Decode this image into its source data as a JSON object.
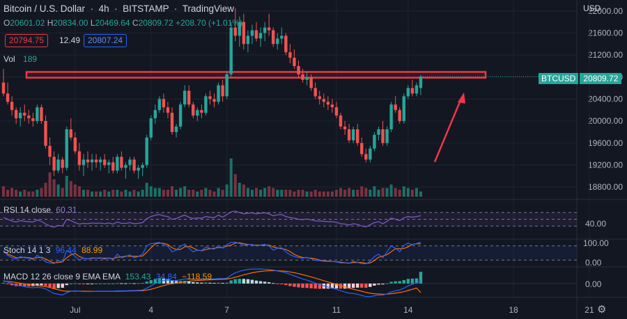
{
  "header": {
    "title": "Bitcoin / U.S. Dollar",
    "interval": "4h",
    "exchange": "BITSTAMP",
    "provider": "TradingView",
    "currency": "USD"
  },
  "ohlc": {
    "o_label": "O",
    "o": "20601.02",
    "h_label": "H",
    "h": "20834.00",
    "l_label": "L",
    "l": "20469.64",
    "c_label": "C",
    "c": "20809.72",
    "change": "+208.70 (+1.01%)"
  },
  "price_boxes": {
    "bid": "20794.75",
    "spread": "12.49",
    "ask": "20807.24"
  },
  "volume": {
    "label": "Vol",
    "value": "189"
  },
  "rsi": {
    "label": "RSI 14 close",
    "value": "60.31",
    "ticks": [
      "40.00"
    ]
  },
  "stoch": {
    "label": "Stoch 14 1 3",
    "k": "96.44",
    "d": "88.99",
    "ticks": [
      "100.00",
      "0.00"
    ]
  },
  "macd": {
    "label": "MACD 12 26 close 9 EMA EMA",
    "hist": "153.43",
    "macd": "34.84",
    "signal": "−118.59",
    "ticks": [
      "0.00"
    ]
  },
  "symbol_tag": {
    "name": "BTCUSD",
    "price": "20809.72"
  },
  "colors": {
    "up": "#26a69a",
    "down": "#ef5350",
    "bg": "#131722",
    "rsi": "#7e57c2",
    "stoch_k": "#2962ff",
    "stoch_d": "#ff6d00",
    "annotation": "#f23645"
  },
  "chart_data": {
    "type": "candlestick",
    "title": "Bitcoin / U.S. Dollar",
    "ylabel": "USD",
    "ylim": [
      18600,
      22200
    ],
    "y_ticks": [
      18800,
      19200,
      19600,
      20000,
      20400,
      20800,
      21200,
      21600,
      22000
    ],
    "y_tick_labels": [
      "18800.00",
      "19200.00",
      "19600.00",
      "20000.00",
      "20400.00",
      "20800.00",
      "21200.00",
      "21600.00",
      "22000.00"
    ],
    "x_tick_labels": [
      "Jul",
      "4",
      "7",
      "11",
      "14",
      "18",
      "21"
    ],
    "x_tick_bar_index": [
      17,
      35,
      53,
      79,
      96,
      121,
      139
    ],
    "grid": true,
    "last_price": 20809.72,
    "resistance_zone": [
      20800,
      20880
    ],
    "candles": [
      [
        20700,
        20950,
        20450,
        20500
      ],
      [
        20500,
        20700,
        20300,
        20350
      ],
      [
        20350,
        20450,
        20100,
        20200
      ],
      [
        20200,
        20250,
        19950,
        20050
      ],
      [
        20050,
        20250,
        19900,
        20150
      ],
      [
        20150,
        20300,
        20000,
        20100
      ],
      [
        20100,
        20200,
        19950,
        20050
      ],
      [
        20050,
        20150,
        19900,
        20000
      ],
      [
        20000,
        20300,
        19950,
        20250
      ],
      [
        20250,
        20300,
        19950,
        20000
      ],
      [
        20000,
        20100,
        19500,
        19550
      ],
      [
        19550,
        19700,
        19200,
        19350
      ],
      [
        19350,
        19450,
        19000,
        19100
      ],
      [
        19100,
        19400,
        19050,
        19300
      ],
      [
        19300,
        19350,
        19050,
        19150
      ],
      [
        19150,
        19900,
        19100,
        19850
      ],
      [
        19850,
        20050,
        19650,
        19700
      ],
      [
        19700,
        19800,
        19400,
        19450
      ],
      [
        19450,
        19600,
        19100,
        19200
      ],
      [
        19200,
        19400,
        19000,
        19300
      ],
      [
        19300,
        19450,
        19150,
        19250
      ],
      [
        19250,
        19400,
        19100,
        19300
      ],
      [
        19300,
        19400,
        19150,
        19250
      ],
      [
        19250,
        19350,
        19100,
        19300
      ],
      [
        19300,
        19400,
        19150,
        19200
      ],
      [
        19200,
        19300,
        19050,
        19250
      ],
      [
        19250,
        19350,
        19050,
        19100
      ],
      [
        19100,
        19400,
        19050,
        19350
      ],
      [
        19350,
        19450,
        19100,
        19150
      ],
      [
        19150,
        19250,
        18950,
        19200
      ],
      [
        19200,
        19350,
        19100,
        19300
      ],
      [
        19300,
        19350,
        19050,
        19100
      ],
      [
        19100,
        19200,
        18950,
        19150
      ],
      [
        19150,
        19250,
        19000,
        19200
      ],
      [
        19200,
        19750,
        19150,
        19700
      ],
      [
        19700,
        20100,
        19650,
        20050
      ],
      [
        20050,
        20300,
        19950,
        20200
      ],
      [
        20200,
        20450,
        20150,
        20400
      ],
      [
        20400,
        20500,
        20150,
        20250
      ],
      [
        20250,
        20350,
        20050,
        20150
      ],
      [
        20150,
        20250,
        19750,
        19800
      ],
      [
        19800,
        19950,
        19700,
        19900
      ],
      [
        19900,
        20350,
        19850,
        20300
      ],
      [
        20300,
        20650,
        20250,
        20550
      ],
      [
        20550,
        20650,
        20250,
        20300
      ],
      [
        20300,
        20350,
        20050,
        20100
      ],
      [
        20100,
        20250,
        20000,
        20200
      ],
      [
        20200,
        20300,
        20050,
        20150
      ],
      [
        20150,
        20500,
        20100,
        20450
      ],
      [
        20450,
        20550,
        20300,
        20400
      ],
      [
        20400,
        20500,
        20250,
        20350
      ],
      [
        20350,
        20700,
        20300,
        20650
      ],
      [
        20650,
        20750,
        20350,
        20450
      ],
      [
        20450,
        20900,
        20400,
        20850
      ],
      [
        20850,
        21800,
        20800,
        21700
      ],
      [
        21700,
        22050,
        21450,
        21550
      ],
      [
        21550,
        21900,
        21350,
        21800
      ],
      [
        21800,
        21950,
        21300,
        21400
      ],
      [
        21400,
        21650,
        21250,
        21550
      ],
      [
        21550,
        21750,
        21400,
        21650
      ],
      [
        21650,
        21800,
        21450,
        21500
      ],
      [
        21500,
        21700,
        21350,
        21600
      ],
      [
        21600,
        21800,
        21450,
        21700
      ],
      [
        21700,
        21950,
        21550,
        21650
      ],
      [
        21650,
        21700,
        21350,
        21400
      ],
      [
        21400,
        21600,
        21300,
        21500
      ],
      [
        21500,
        21700,
        21400,
        21550
      ],
      [
        21550,
        21600,
        21200,
        21250
      ],
      [
        21250,
        21400,
        21050,
        21150
      ],
      [
        21150,
        21300,
        20950,
        21000
      ],
      [
        21000,
        21100,
        20800,
        20850
      ],
      [
        20850,
        20950,
        20700,
        20750
      ],
      [
        20750,
        20900,
        20650,
        20800
      ],
      [
        20800,
        20850,
        20550,
        20600
      ],
      [
        20600,
        20700,
        20400,
        20450
      ],
      [
        20450,
        20550,
        20300,
        20400
      ],
      [
        20400,
        20500,
        20250,
        20350
      ],
      [
        20350,
        20450,
        20200,
        20300
      ],
      [
        20300,
        20400,
        20150,
        20250
      ],
      [
        20250,
        20350,
        20050,
        20100
      ],
      [
        20100,
        20150,
        19850,
        19900
      ],
      [
        19900,
        20000,
        19750,
        19850
      ],
      [
        19850,
        19950,
        19600,
        19650
      ],
      [
        19650,
        19900,
        19600,
        19850
      ],
      [
        19850,
        19950,
        19550,
        19600
      ],
      [
        19600,
        19700,
        19350,
        19400
      ],
      [
        19400,
        19500,
        19250,
        19300
      ],
      [
        19300,
        19550,
        19250,
        19500
      ],
      [
        19500,
        19800,
        19450,
        19750
      ],
      [
        19750,
        19900,
        19650,
        19850
      ],
      [
        19850,
        20000,
        19550,
        19600
      ],
      [
        19600,
        19900,
        19550,
        19850
      ],
      [
        19850,
        20350,
        19800,
        20300
      ],
      [
        20300,
        20450,
        20150,
        20200
      ],
      [
        20200,
        20250,
        19950,
        20000
      ],
      [
        20000,
        20500,
        19950,
        20450
      ],
      [
        20450,
        20650,
        20400,
        20600
      ],
      [
        20600,
        20750,
        20450,
        20500
      ],
      [
        20500,
        20700,
        20450,
        20650
      ],
      [
        20601.02,
        20834,
        20469.64,
        20809.72
      ]
    ],
    "volume": [
      6,
      4,
      5,
      4,
      3,
      4,
      3,
      3,
      4,
      5,
      8,
      14,
      10,
      7,
      5,
      12,
      9,
      7,
      6,
      4,
      4,
      3,
      3,
      3,
      4,
      3,
      4,
      4,
      3,
      4,
      3,
      4,
      3,
      4,
      8,
      6,
      5,
      5,
      4,
      4,
      6,
      4,
      5,
      6,
      4,
      4,
      3,
      4,
      5,
      4,
      3,
      5,
      4,
      7,
      22,
      13,
      8,
      7,
      5,
      4,
      5,
      4,
      5,
      6,
      5,
      4,
      4,
      4,
      4,
      3,
      4,
      4,
      3,
      3,
      4,
      3,
      3,
      3,
      3,
      4,
      5,
      4,
      5,
      4,
      4,
      6,
      5,
      4,
      6,
      4,
      5,
      5,
      7,
      5,
      4,
      6,
      5,
      4,
      5,
      3
    ],
    "rsi": [
      55,
      50,
      45,
      42,
      46,
      44,
      43,
      42,
      48,
      44,
      36,
      30,
      27,
      32,
      30,
      50,
      46,
      40,
      36,
      38,
      37,
      39,
      38,
      39,
      37,
      39,
      36,
      42,
      38,
      38,
      40,
      37,
      38,
      40,
      52,
      58,
      62,
      64,
      60,
      58,
      50,
      52,
      58,
      62,
      56,
      52,
      54,
      53,
      58,
      56,
      55,
      62,
      56,
      64,
      72,
      74,
      70,
      66,
      68,
      69,
      66,
      68,
      69,
      66,
      60,
      63,
      64,
      58,
      55,
      53,
      50,
      49,
      51,
      48,
      45,
      45,
      44,
      43,
      43,
      41,
      37,
      36,
      33,
      37,
      35,
      30,
      28,
      34,
      40,
      43,
      37,
      44,
      54,
      50,
      46,
      54,
      58,
      56,
      58,
      60.31
    ],
    "stoch_k": [
      60,
      40,
      30,
      25,
      35,
      30,
      28,
      22,
      40,
      28,
      12,
      8,
      5,
      18,
      12,
      60,
      50,
      35,
      20,
      28,
      25,
      30,
      28,
      30,
      24,
      30,
      22,
      45,
      30,
      35,
      42,
      30,
      35,
      45,
      80,
      90,
      92,
      95,
      85,
      78,
      55,
      62,
      78,
      88,
      70,
      55,
      62,
      60,
      75,
      70,
      66,
      82,
      70,
      85,
      95,
      96,
      90,
      82,
      85,
      86,
      80,
      84,
      86,
      80,
      62,
      70,
      72,
      55,
      42,
      35,
      30,
      28,
      32,
      25,
      18,
      18,
      15,
      14,
      14,
      12,
      8,
      8,
      6,
      15,
      10,
      5,
      4,
      15,
      35,
      45,
      30,
      55,
      80,
      70,
      55,
      82,
      92,
      85,
      90,
      96.44
    ],
    "stoch_d": [
      55,
      45,
      38,
      30,
      30,
      32,
      30,
      27,
      30,
      32,
      25,
      15,
      8,
      10,
      12,
      30,
      42,
      48,
      35,
      28,
      25,
      28,
      28,
      28,
      28,
      28,
      26,
      32,
      33,
      37,
      36,
      36,
      36,
      37,
      53,
      72,
      88,
      92,
      91,
      86,
      72,
      65,
      65,
      76,
      78,
      71,
      62,
      59,
      65,
      68,
      70,
      73,
      73,
      79,
      83,
      92,
      93,
      89,
      86,
      84,
      83,
      83,
      83,
      83,
      76,
      71,
      68,
      65,
      56,
      44,
      36,
      31,
      30,
      28,
      25,
      20,
      17,
      16,
      14,
      13,
      11,
      9,
      7,
      10,
      10,
      10,
      6,
      8,
      18,
      32,
      37,
      43,
      55,
      68,
      68,
      69,
      76,
      86,
      89,
      88.99
    ],
    "macd": [
      40,
      20,
      0,
      -20,
      -30,
      -40,
      -50,
      -55,
      -50,
      -55,
      -70,
      -100,
      -130,
      -140,
      -150,
      -120,
      -100,
      -95,
      -100,
      -105,
      -105,
      -105,
      -100,
      -100,
      -100,
      -100,
      -100,
      -95,
      -95,
      -95,
      -92,
      -92,
      -90,
      -85,
      -60,
      -30,
      0,
      30,
      40,
      45,
      40,
      40,
      50,
      60,
      60,
      55,
      55,
      55,
      60,
      60,
      60,
      65,
      65,
      70,
      110,
      140,
      160,
      175,
      185,
      190,
      190,
      190,
      188,
      185,
      175,
      165,
      155,
      140,
      120,
      100,
      80,
      60,
      45,
      25,
      5,
      -15,
      -30,
      -45,
      -60,
      -75,
      -95,
      -110,
      -125,
      -130,
      -140,
      -155,
      -170,
      -170,
      -160,
      -150,
      -150,
      -135,
      -110,
      -95,
      -85,
      -60,
      -30,
      -10,
      10,
      34.84
    ],
    "macd_signal": [
      30,
      28,
      22,
      14,
      5,
      -4,
      -13,
      -21,
      -27,
      -33,
      -40,
      -52,
      -67,
      -81,
      -95,
      -100,
      -100,
      -99,
      -99,
      -100,
      -101,
      -102,
      -101,
      -101,
      -101,
      -101,
      -101,
      -100,
      -99,
      -98,
      -97,
      -96,
      -95,
      -93,
      -86,
      -75,
      -60,
      -42,
      -26,
      -12,
      -2,
      6,
      15,
      24,
      31,
      36,
      40,
      43,
      46,
      49,
      51,
      54,
      56,
      59,
      69,
      83,
      98,
      114,
      128,
      141,
      151,
      159,
      164,
      168,
      169,
      168,
      165,
      160,
      152,
      142,
      130,
      116,
      102,
      87,
      71,
      54,
      37,
      21,
      5,
      -11,
      -28,
      -44,
      -60,
      -74,
      -87,
      -101,
      -115,
      -126,
      -133,
      -136,
      -139,
      -138,
      -133,
      -125,
      -117,
      -106,
      -91,
      -75,
      -58,
      -118.59
    ]
  }
}
